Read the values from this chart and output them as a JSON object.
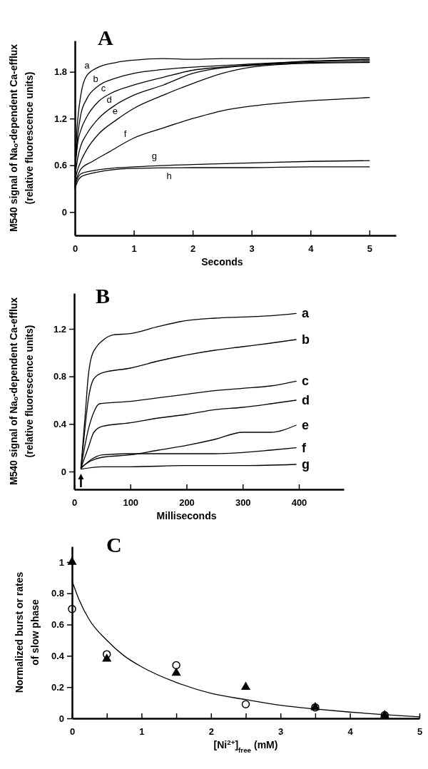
{
  "chart_data": [
    {
      "type": "line",
      "title": "A",
      "xlabel": "Seconds",
      "ylabel": "M540 signal of Naₒ-dependent Ca-efflux\n(relative fluorescence units)",
      "xlim": [
        0,
        5.45
      ],
      "ylim": [
        -0.3,
        2.2
      ],
      "xticks": [
        0,
        1,
        2,
        3,
        4,
        5
      ],
      "yticks": [
        0,
        0.6,
        1.2,
        1.8
      ],
      "grid": false,
      "marker": "none",
      "line_style": "solid",
      "series": [
        {
          "name": "a",
          "color": "#000000",
          "x": [
            0,
            0.03,
            0.05,
            0.1,
            0.2,
            0.4,
            0.7,
            1,
            1.5,
            2,
            2.5,
            3,
            3.5,
            4,
            4.5,
            5
          ],
          "values": [
            0.3,
            1.0,
            1.2,
            1.5,
            1.75,
            1.86,
            1.92,
            1.95,
            1.97,
            1.96,
            1.97,
            1.97,
            1.97,
            1.97,
            1.98,
            1.98
          ]
        },
        {
          "name": "b",
          "color": "#000000",
          "x": [
            0,
            0.05,
            0.1,
            0.2,
            0.4,
            0.7,
            1,
            1.5,
            2,
            2.5,
            3,
            3.5,
            4,
            4.5,
            5
          ],
          "values": [
            0.55,
            1.0,
            1.25,
            1.45,
            1.62,
            1.72,
            1.78,
            1.83,
            1.86,
            1.88,
            1.9,
            1.92,
            1.94,
            1.95,
            1.96
          ]
        },
        {
          "name": "c",
          "color": "#000000",
          "x": [
            0,
            0.05,
            0.1,
            0.2,
            0.4,
            0.6,
            1,
            1.5,
            2,
            2.5,
            3,
            4,
            5
          ],
          "values": [
            0.5,
            0.9,
            1.05,
            1.22,
            1.42,
            1.52,
            1.63,
            1.73,
            1.82,
            1.86,
            1.89,
            1.93,
            1.95
          ]
        },
        {
          "name": "d",
          "color": "#000000",
          "x": [
            0,
            0.05,
            0.1,
            0.2,
            0.4,
            0.7,
            1,
            1.5,
            2,
            2.5,
            3,
            4,
            5
          ],
          "values": [
            0.45,
            0.7,
            0.85,
            1.0,
            1.2,
            1.38,
            1.5,
            1.63,
            1.78,
            1.85,
            1.88,
            1.92,
            1.93
          ]
        },
        {
          "name": "e",
          "color": "#000000",
          "x": [
            0,
            0.05,
            0.1,
            0.2,
            0.4,
            0.7,
            1,
            1.5,
            2,
            2.5,
            3,
            4,
            5
          ],
          "values": [
            0.4,
            0.55,
            0.65,
            0.8,
            1.0,
            1.18,
            1.33,
            1.5,
            1.65,
            1.78,
            1.86,
            1.91,
            1.92
          ]
        },
        {
          "name": "f",
          "color": "#000000",
          "x": [
            0,
            0.1,
            0.3,
            0.6,
            1,
            1.5,
            2,
            2.5,
            3,
            3.5,
            4,
            4.5,
            5
          ],
          "values": [
            0.37,
            0.55,
            0.65,
            0.78,
            0.95,
            1.08,
            1.2,
            1.3,
            1.36,
            1.4,
            1.43,
            1.45,
            1.47
          ]
        },
        {
          "name": "g",
          "color": "#000000",
          "x": [
            0,
            0.05,
            0.1,
            0.3,
            0.6,
            1,
            2,
            3,
            4,
            5
          ],
          "values": [
            0.34,
            0.44,
            0.49,
            0.53,
            0.56,
            0.58,
            0.61,
            0.63,
            0.65,
            0.66
          ]
        },
        {
          "name": "h",
          "color": "#000000",
          "x": [
            0,
            0.05,
            0.1,
            0.3,
            0.6,
            1,
            2,
            3,
            4,
            5
          ],
          "values": [
            0.3,
            0.4,
            0.45,
            0.5,
            0.54,
            0.56,
            0.57,
            0.57,
            0.58,
            0.58
          ]
        }
      ]
    },
    {
      "type": "line",
      "title": "B",
      "xlabel": "Milliseconds",
      "ylabel": "M540 signal of Naₒ-dependent Ca-efflux\n(relative fluorescence units)",
      "xlim": [
        0,
        480
      ],
      "ylim": [
        -0.15,
        1.5
      ],
      "xticks": [
        0,
        100,
        200,
        300,
        400
      ],
      "yticks": [
        0,
        0.4,
        0.8,
        1.2
      ],
      "grid": false,
      "marker": "none",
      "line_style": "solid",
      "series": [
        {
          "name": "a",
          "color": "#000000",
          "x": [
            12,
            20,
            25,
            30,
            40,
            50,
            70,
            100,
            150,
            200,
            250,
            300,
            350,
            395
          ],
          "values": [
            0.03,
            0.5,
            0.8,
            0.95,
            1.05,
            1.1,
            1.15,
            1.16,
            1.22,
            1.27,
            1.29,
            1.3,
            1.31,
            1.33
          ]
        },
        {
          "name": "b",
          "color": "#000000",
          "x": [
            12,
            20,
            25,
            35,
            50,
            100,
            150,
            200,
            250,
            300,
            350,
            395
          ],
          "values": [
            0.03,
            0.4,
            0.6,
            0.78,
            0.83,
            0.87,
            0.93,
            0.98,
            1.02,
            1.05,
            1.08,
            1.11
          ]
        },
        {
          "name": "c",
          "color": "#000000",
          "x": [
            12,
            25,
            35,
            45,
            100,
            150,
            200,
            250,
            300,
            350,
            395
          ],
          "values": [
            0.03,
            0.35,
            0.5,
            0.57,
            0.59,
            0.62,
            0.65,
            0.68,
            0.7,
            0.72,
            0.76
          ]
        },
        {
          "name": "d",
          "color": "#000000",
          "x": [
            12,
            25,
            35,
            50,
            100,
            150,
            200,
            250,
            300,
            350,
            395
          ],
          "values": [
            0.03,
            0.2,
            0.33,
            0.38,
            0.41,
            0.45,
            0.48,
            0.52,
            0.54,
            0.57,
            0.6
          ]
        },
        {
          "name": "e",
          "color": "#000000",
          "x": [
            12,
            30,
            50,
            100,
            150,
            200,
            250,
            300,
            350,
            395
          ],
          "values": [
            0.035,
            0.09,
            0.12,
            0.14,
            0.18,
            0.22,
            0.27,
            0.33,
            0.33,
            0.39
          ]
        },
        {
          "name": "f",
          "color": "#000000",
          "x": [
            12,
            30,
            50,
            100,
            150,
            200,
            250,
            300,
            350,
            395
          ],
          "values": [
            0.025,
            0.1,
            0.14,
            0.15,
            0.15,
            0.15,
            0.15,
            0.16,
            0.18,
            0.2
          ]
        },
        {
          "name": "g",
          "color": "#000000",
          "x": [
            12,
            50,
            100,
            200,
            300,
            395
          ],
          "values": [
            0.02,
            0.04,
            0.04,
            0.05,
            0.05,
            0.06
          ]
        }
      ]
    },
    {
      "type": "scatter",
      "title": "C",
      "xlabel": "[Ni$^{2+}$]$_{free}$ (mM)",
      "ylabel": "Normalized burst or rates\nof slow phase",
      "xlim": [
        0,
        5
      ],
      "ylim": [
        0,
        1.1
      ],
      "xticks": [
        0,
        {
          "value": 0.5,
          "label": null
        },
        1,
        {
          "value": 1.5,
          "label": null
        },
        2,
        {
          "value": 2.5,
          "label": null
        },
        3,
        {
          "value": 3.5,
          "label": null
        },
        4,
        {
          "value": 4.5,
          "label": null
        },
        5
      ],
      "yticks": [
        0,
        0.2,
        0.4,
        0.6,
        0.8,
        1
      ],
      "grid": false,
      "series": [
        {
          "type": "line",
          "color": "#000000",
          "marker": "none",
          "line_style": "solid",
          "x": [
            0,
            0.1,
            0.25,
            0.5,
            0.75,
            1,
            1.5,
            2,
            2.5,
            3,
            3.5,
            4,
            4.5,
            5
          ],
          "values": [
            0.88,
            0.76,
            0.63,
            0.5,
            0.4,
            0.33,
            0.23,
            0.16,
            0.12,
            0.084,
            0.06,
            0.04,
            0.023,
            0.01
          ]
        },
        {
          "type": "scatter",
          "color": "#000000",
          "marker": "circle",
          "x": [
            0,
            0.5,
            1.5,
            2.5,
            3.5,
            4.5
          ],
          "values": [
            0.7,
            0.41,
            0.34,
            0.09,
            0.07,
            0.02
          ]
        },
        {
          "type": "scatter",
          "color": "#000000",
          "marker": "triangle",
          "x": [
            0,
            0.5,
            1.5,
            2.5,
            3.5,
            4.5
          ],
          "values": [
            1.0,
            0.38,
            0.29,
            0.2,
            0.07,
            0.02
          ]
        }
      ]
    }
  ]
}
